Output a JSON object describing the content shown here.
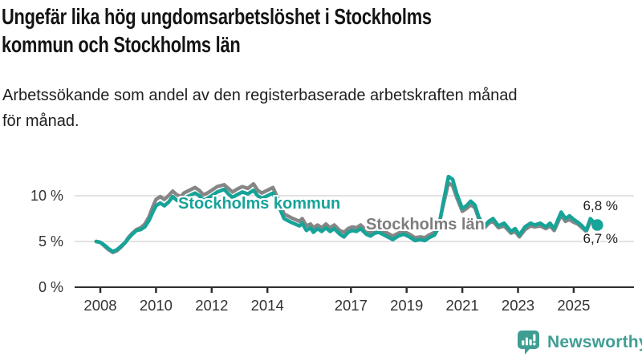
{
  "title": {
    "line1": "Ungefär lika hög ungdomsarbetslöshet i Stockholms",
    "line2": "kommun och Stockholms län"
  },
  "subtitle": {
    "line1": "Arbetssökande som andel av den registerbaserade arbetskraften månad",
    "line2": "för månad."
  },
  "branding": {
    "name": "Newsworthy",
    "icon": "newsworthy-speech-bubble-barchart-icon"
  },
  "colors": {
    "kommun_teal": "#17a398",
    "lan_gray": "#868686",
    "grid": "#d9d9d9",
    "axis": "#2f2f2f",
    "text_dark": "#141414",
    "label_gray": "#7d7d7d",
    "logo_teal": "#3f9e93"
  },
  "chart_data": {
    "type": "line",
    "title": "Ungefär lika hög ungdomsarbetslöshet i Stockholms kommun och Stockholms län",
    "subtitle": "Arbetssökande som andel av den registerbaserade arbetskraften månad för månad.",
    "unit": "%",
    "grid": "horizontal",
    "legend_position": "inline-labels",
    "x_axis": {
      "ticks": [
        2008,
        2010,
        2012,
        2014,
        2017,
        2019,
        2021,
        2023,
        2025
      ],
      "labels": [
        "2008",
        "2010",
        "2012",
        "2014",
        "2017",
        "2019",
        "2021",
        "2023",
        "2025"
      ],
      "range": [
        2007.0,
        2026.9
      ]
    },
    "y_axis": {
      "ticks": [
        0,
        5,
        10
      ],
      "labels": [
        "0 %",
        "5 %",
        "10 %"
      ],
      "gridline_ticks": [
        5,
        10
      ],
      "range": [
        0,
        12.6
      ]
    },
    "series": [
      {
        "name": "Stockholms kommun",
        "inline_label": "Stockholms kommun",
        "end_label": "6,8 %",
        "end_value": 6.8,
        "color": "#17a398",
        "end_dot": true,
        "points": [
          [
            2007.85,
            5.0
          ],
          [
            2008.0,
            4.9
          ],
          [
            2008.15,
            4.6
          ],
          [
            2008.3,
            4.2
          ],
          [
            2008.45,
            3.9
          ],
          [
            2008.6,
            4.1
          ],
          [
            2008.75,
            4.5
          ],
          [
            2008.9,
            4.9
          ],
          [
            2009.0,
            5.3
          ],
          [
            2009.15,
            5.8
          ],
          [
            2009.3,
            6.2
          ],
          [
            2009.45,
            6.3
          ],
          [
            2009.6,
            6.6
          ],
          [
            2009.75,
            7.3
          ],
          [
            2009.9,
            8.3
          ],
          [
            2010.0,
            8.9
          ],
          [
            2010.15,
            9.2
          ],
          [
            2010.3,
            8.9
          ],
          [
            2010.45,
            9.3
          ],
          [
            2010.6,
            9.9
          ],
          [
            2010.75,
            9.5
          ],
          [
            2010.9,
            9.3
          ],
          [
            2011.0,
            9.7
          ],
          [
            2011.2,
            10.0
          ],
          [
            2011.4,
            10.3
          ],
          [
            2011.55,
            10.0
          ],
          [
            2011.7,
            9.5
          ],
          [
            2011.85,
            9.7
          ],
          [
            2012.0,
            10.0
          ],
          [
            2012.2,
            10.4
          ],
          [
            2012.45,
            10.7
          ],
          [
            2012.6,
            10.2
          ],
          [
            2012.75,
            9.8
          ],
          [
            2012.9,
            10.1
          ],
          [
            2013.1,
            10.4
          ],
          [
            2013.3,
            10.2
          ],
          [
            2013.5,
            10.6
          ],
          [
            2013.65,
            10.0
          ],
          [
            2013.8,
            9.7
          ],
          [
            2014.0,
            10.0
          ],
          [
            2014.2,
            10.3
          ],
          [
            2014.4,
            8.9
          ],
          [
            2014.6,
            7.5
          ],
          [
            2014.85,
            7.1
          ],
          [
            2015.0,
            6.9
          ],
          [
            2015.15,
            6.7
          ],
          [
            2015.25,
            7.0
          ],
          [
            2015.4,
            6.2
          ],
          [
            2015.55,
            6.5
          ],
          [
            2015.65,
            6.0
          ],
          [
            2015.8,
            6.4
          ],
          [
            2015.95,
            6.1
          ],
          [
            2016.1,
            6.5
          ],
          [
            2016.25,
            6.1
          ],
          [
            2016.4,
            6.4
          ],
          [
            2016.6,
            5.8
          ],
          [
            2016.75,
            5.5
          ],
          [
            2016.9,
            6.0
          ],
          [
            2017.05,
            6.2
          ],
          [
            2017.2,
            6.1
          ],
          [
            2017.35,
            6.4
          ],
          [
            2017.55,
            5.8
          ],
          [
            2017.7,
            5.6
          ],
          [
            2017.85,
            5.9
          ],
          [
            2018.0,
            6.0
          ],
          [
            2018.2,
            5.7
          ],
          [
            2018.5,
            5.2
          ],
          [
            2018.7,
            5.6
          ],
          [
            2018.9,
            5.8
          ],
          [
            2019.1,
            5.5
          ],
          [
            2019.3,
            5.1
          ],
          [
            2019.5,
            5.2
          ],
          [
            2019.65,
            5.1
          ],
          [
            2019.8,
            5.4
          ],
          [
            2020.0,
            5.7
          ],
          [
            2020.15,
            6.5
          ],
          [
            2020.3,
            9.0
          ],
          [
            2020.5,
            12.1
          ],
          [
            2020.65,
            11.8
          ],
          [
            2020.8,
            10.2
          ],
          [
            2021.0,
            8.6
          ],
          [
            2021.15,
            8.9
          ],
          [
            2021.3,
            9.4
          ],
          [
            2021.45,
            9.0
          ],
          [
            2021.6,
            7.6
          ],
          [
            2021.8,
            6.7
          ],
          [
            2021.95,
            7.2
          ],
          [
            2022.1,
            7.5
          ],
          [
            2022.3,
            6.7
          ],
          [
            2022.5,
            7.0
          ],
          [
            2022.75,
            6.1
          ],
          [
            2022.9,
            6.4
          ],
          [
            2023.05,
            5.7
          ],
          [
            2023.25,
            6.6
          ],
          [
            2023.45,
            7.0
          ],
          [
            2023.6,
            6.8
          ],
          [
            2023.8,
            7.0
          ],
          [
            2024.0,
            6.6
          ],
          [
            2024.15,
            7.0
          ],
          [
            2024.3,
            6.4
          ],
          [
            2024.55,
            8.2
          ],
          [
            2024.7,
            7.5
          ],
          [
            2024.85,
            7.8
          ],
          [
            2025.0,
            7.4
          ],
          [
            2025.15,
            7.1
          ],
          [
            2025.3,
            6.7
          ],
          [
            2025.45,
            6.2
          ],
          [
            2025.6,
            7.5
          ],
          [
            2025.75,
            7.0
          ],
          [
            2025.85,
            6.8
          ]
        ]
      },
      {
        "name": "Stockholms län",
        "inline_label": "Stockholms län",
        "end_label": "6,7 %",
        "end_value": 6.7,
        "color": "#868686",
        "end_dot": false,
        "points": [
          [
            2007.85,
            5.0
          ],
          [
            2008.0,
            4.9
          ],
          [
            2008.15,
            4.5
          ],
          [
            2008.3,
            4.1
          ],
          [
            2008.45,
            3.8
          ],
          [
            2008.6,
            4.0
          ],
          [
            2008.75,
            4.4
          ],
          [
            2008.9,
            4.9
          ],
          [
            2009.0,
            5.4
          ],
          [
            2009.15,
            5.9
          ],
          [
            2009.3,
            6.3
          ],
          [
            2009.45,
            6.5
          ],
          [
            2009.6,
            6.9
          ],
          [
            2009.75,
            7.7
          ],
          [
            2009.9,
            8.9
          ],
          [
            2010.0,
            9.6
          ],
          [
            2010.15,
            9.9
          ],
          [
            2010.3,
            9.6
          ],
          [
            2010.45,
            10.0
          ],
          [
            2010.6,
            10.5
          ],
          [
            2010.75,
            10.1
          ],
          [
            2010.9,
            9.9
          ],
          [
            2011.0,
            10.3
          ],
          [
            2011.2,
            10.6
          ],
          [
            2011.4,
            10.9
          ],
          [
            2011.55,
            10.6
          ],
          [
            2011.7,
            10.1
          ],
          [
            2011.85,
            10.3
          ],
          [
            2012.0,
            10.6
          ],
          [
            2012.2,
            11.0
          ],
          [
            2012.45,
            11.2
          ],
          [
            2012.6,
            10.8
          ],
          [
            2012.75,
            10.4
          ],
          [
            2012.9,
            10.7
          ],
          [
            2013.1,
            11.0
          ],
          [
            2013.3,
            10.8
          ],
          [
            2013.5,
            11.3
          ],
          [
            2013.65,
            10.6
          ],
          [
            2013.8,
            10.3
          ],
          [
            2014.0,
            10.6
          ],
          [
            2014.2,
            10.9
          ],
          [
            2014.4,
            9.5
          ],
          [
            2014.6,
            8.0
          ],
          [
            2014.85,
            7.6
          ],
          [
            2015.0,
            7.4
          ],
          [
            2015.15,
            7.2
          ],
          [
            2015.25,
            7.5
          ],
          [
            2015.4,
            6.7
          ],
          [
            2015.55,
            6.9
          ],
          [
            2015.65,
            6.5
          ],
          [
            2015.8,
            6.8
          ],
          [
            2015.95,
            6.5
          ],
          [
            2016.1,
            6.9
          ],
          [
            2016.25,
            6.5
          ],
          [
            2016.4,
            6.8
          ],
          [
            2016.6,
            6.2
          ],
          [
            2016.75,
            6.0
          ],
          [
            2016.9,
            6.4
          ],
          [
            2017.05,
            6.6
          ],
          [
            2017.2,
            6.5
          ],
          [
            2017.35,
            6.8
          ],
          [
            2017.55,
            6.2
          ],
          [
            2017.7,
            6.0
          ],
          [
            2017.85,
            6.3
          ],
          [
            2018.0,
            6.4
          ],
          [
            2018.2,
            6.1
          ],
          [
            2018.5,
            5.6
          ],
          [
            2018.7,
            5.9
          ],
          [
            2018.9,
            6.1
          ],
          [
            2019.1,
            5.8
          ],
          [
            2019.3,
            5.4
          ],
          [
            2019.5,
            5.5
          ],
          [
            2019.65,
            5.4
          ],
          [
            2019.8,
            5.7
          ],
          [
            2020.0,
            6.0
          ],
          [
            2020.15,
            6.7
          ],
          [
            2020.3,
            8.8
          ],
          [
            2020.5,
            11.4
          ],
          [
            2020.65,
            11.1
          ],
          [
            2020.8,
            9.8
          ],
          [
            2021.0,
            8.3
          ],
          [
            2021.15,
            8.6
          ],
          [
            2021.3,
            9.0
          ],
          [
            2021.45,
            8.7
          ],
          [
            2021.6,
            7.4
          ],
          [
            2021.8,
            6.5
          ],
          [
            2021.95,
            7.0
          ],
          [
            2022.1,
            7.2
          ],
          [
            2022.3,
            6.5
          ],
          [
            2022.5,
            6.7
          ],
          [
            2022.75,
            5.9
          ],
          [
            2022.9,
            6.1
          ],
          [
            2023.05,
            5.5
          ],
          [
            2023.25,
            6.3
          ],
          [
            2023.45,
            6.7
          ],
          [
            2023.6,
            6.6
          ],
          [
            2023.8,
            6.7
          ],
          [
            2024.0,
            6.4
          ],
          [
            2024.15,
            6.7
          ],
          [
            2024.3,
            6.2
          ],
          [
            2024.55,
            7.9
          ],
          [
            2024.7,
            7.2
          ],
          [
            2024.85,
            7.4
          ],
          [
            2025.0,
            7.1
          ],
          [
            2025.15,
            6.9
          ],
          [
            2025.3,
            6.5
          ],
          [
            2025.45,
            6.1
          ],
          [
            2025.6,
            7.2
          ],
          [
            2025.75,
            6.8
          ],
          [
            2025.85,
            6.7
          ]
        ]
      }
    ]
  }
}
